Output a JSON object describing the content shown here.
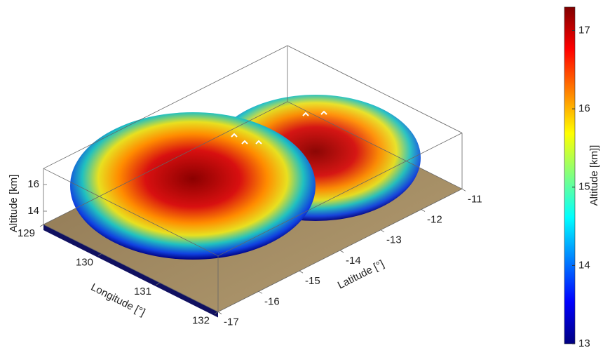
{
  "chart_data": {
    "type": "surface3d",
    "xlabel": "Longitude [°]",
    "ylabel": "Latitude [°]",
    "zlabel": "Altitude [km]",
    "xlim": [
      129,
      132
    ],
    "xticks": [
      129,
      130,
      131,
      132
    ],
    "ylim": [
      -17,
      -11
    ],
    "yticks": [
      -17,
      -16,
      -15,
      -14,
      -13,
      -12,
      -11
    ],
    "zlim": [
      13,
      17.2
    ],
    "zticks": [
      14,
      16
    ],
    "colorbar": {
      "label": "Altitude [km]]",
      "colormap": "jet",
      "clim": [
        13,
        17.3
      ],
      "ticks": [
        13,
        14,
        15,
        16,
        17
      ]
    }
  }
}
